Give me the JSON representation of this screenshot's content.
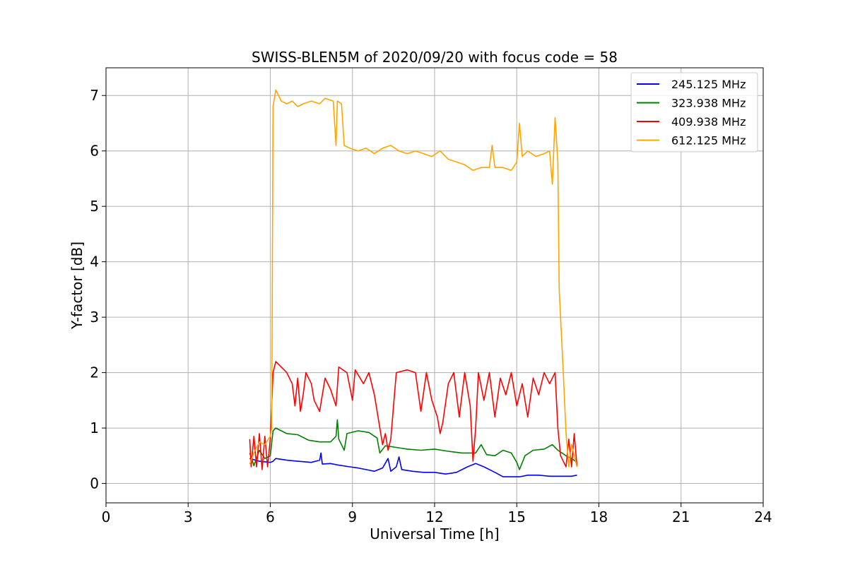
{
  "chart_data": {
    "type": "line",
    "title": "SWISS-BLEN5M of 2020/09/20 with focus code = 58",
    "xlabel": "Universal Time [h]",
    "ylabel": "Y-factor [dB]",
    "xlim": [
      0,
      24
    ],
    "ylim": [
      -0.35,
      7.5
    ],
    "xticks": [
      0,
      3,
      6,
      9,
      12,
      15,
      18,
      21,
      24
    ],
    "yticks": [
      0,
      1,
      2,
      3,
      4,
      5,
      6,
      7
    ],
    "grid": true,
    "legend": "top-right",
    "series": [
      {
        "name": "245.125 MHz",
        "color": "#0000ff",
        "points": [
          [
            5.25,
            0.45
          ],
          [
            5.6,
            0.4
          ],
          [
            6.0,
            0.38
          ],
          [
            6.1,
            0.4
          ],
          [
            6.2,
            0.45
          ],
          [
            6.6,
            0.42
          ],
          [
            7.0,
            0.4
          ],
          [
            7.5,
            0.38
          ],
          [
            7.8,
            0.42
          ],
          [
            7.85,
            0.55
          ],
          [
            7.9,
            0.35
          ],
          [
            8.2,
            0.36
          ],
          [
            8.5,
            0.33
          ],
          [
            8.9,
            0.3
          ],
          [
            9.2,
            0.28
          ],
          [
            9.5,
            0.25
          ],
          [
            9.8,
            0.22
          ],
          [
            10.1,
            0.28
          ],
          [
            10.3,
            0.45
          ],
          [
            10.4,
            0.22
          ],
          [
            10.6,
            0.3
          ],
          [
            10.7,
            0.48
          ],
          [
            10.8,
            0.25
          ],
          [
            11.2,
            0.22
          ],
          [
            11.6,
            0.2
          ],
          [
            12.0,
            0.2
          ],
          [
            12.4,
            0.17
          ],
          [
            12.8,
            0.2
          ],
          [
            13.2,
            0.3
          ],
          [
            13.5,
            0.36
          ],
          [
            13.8,
            0.3
          ],
          [
            14.2,
            0.2
          ],
          [
            14.5,
            0.12
          ],
          [
            14.8,
            0.12
          ],
          [
            15.1,
            0.12
          ],
          [
            15.4,
            0.15
          ],
          [
            15.8,
            0.15
          ],
          [
            16.2,
            0.13
          ],
          [
            16.6,
            0.13
          ],
          [
            17.0,
            0.13
          ],
          [
            17.2,
            0.15
          ]
        ]
      },
      {
        "name": "323.938 MHz",
        "color": "#008000",
        "points": [
          [
            5.25,
            0.55
          ],
          [
            5.4,
            0.32
          ],
          [
            5.6,
            0.6
          ],
          [
            5.8,
            0.45
          ],
          [
            6.0,
            0.5
          ],
          [
            6.1,
            0.95
          ],
          [
            6.2,
            1.0
          ],
          [
            6.6,
            0.9
          ],
          [
            7.0,
            0.88
          ],
          [
            7.4,
            0.78
          ],
          [
            7.8,
            0.75
          ],
          [
            8.2,
            0.75
          ],
          [
            8.4,
            0.85
          ],
          [
            8.45,
            1.15
          ],
          [
            8.5,
            0.8
          ],
          [
            8.7,
            0.6
          ],
          [
            8.8,
            0.9
          ],
          [
            9.2,
            0.95
          ],
          [
            9.6,
            0.92
          ],
          [
            9.9,
            0.82
          ],
          [
            10.0,
            0.55
          ],
          [
            10.2,
            0.68
          ],
          [
            10.6,
            0.65
          ],
          [
            11.0,
            0.62
          ],
          [
            11.5,
            0.6
          ],
          [
            12.0,
            0.62
          ],
          [
            12.5,
            0.58
          ],
          [
            13.0,
            0.55
          ],
          [
            13.5,
            0.55
          ],
          [
            13.7,
            0.7
          ],
          [
            13.9,
            0.52
          ],
          [
            14.2,
            0.5
          ],
          [
            14.5,
            0.6
          ],
          [
            14.8,
            0.55
          ],
          [
            15.0,
            0.38
          ],
          [
            15.1,
            0.25
          ],
          [
            15.3,
            0.5
          ],
          [
            15.6,
            0.6
          ],
          [
            16.0,
            0.62
          ],
          [
            16.3,
            0.7
          ],
          [
            16.5,
            0.6
          ],
          [
            16.8,
            0.5
          ],
          [
            17.0,
            0.45
          ],
          [
            17.2,
            0.38
          ]
        ]
      },
      {
        "name": "409.938 MHz",
        "color": "#ff0000",
        "points": [
          [
            5.25,
            0.8
          ],
          [
            5.3,
            0.3
          ],
          [
            5.4,
            0.85
          ],
          [
            5.5,
            0.3
          ],
          [
            5.6,
            0.9
          ],
          [
            5.7,
            0.25
          ],
          [
            5.8,
            0.85
          ],
          [
            5.9,
            0.3
          ],
          [
            6.0,
            0.8
          ],
          [
            6.1,
            2.0
          ],
          [
            6.2,
            2.2
          ],
          [
            6.4,
            2.1
          ],
          [
            6.6,
            2.0
          ],
          [
            6.8,
            1.8
          ],
          [
            6.9,
            1.4
          ],
          [
            7.0,
            1.9
          ],
          [
            7.1,
            1.3
          ],
          [
            7.2,
            1.6
          ],
          [
            7.3,
            2.0
          ],
          [
            7.5,
            1.8
          ],
          [
            7.6,
            1.5
          ],
          [
            7.8,
            1.3
          ],
          [
            8.0,
            1.9
          ],
          [
            8.2,
            1.7
          ],
          [
            8.4,
            1.4
          ],
          [
            8.5,
            2.1
          ],
          [
            8.8,
            2.0
          ],
          [
            9.0,
            1.5
          ],
          [
            9.1,
            2.05
          ],
          [
            9.4,
            1.8
          ],
          [
            9.6,
            2.0
          ],
          [
            9.8,
            1.6
          ],
          [
            10.0,
            1.0
          ],
          [
            10.1,
            0.7
          ],
          [
            10.2,
            0.9
          ],
          [
            10.3,
            0.6
          ],
          [
            10.4,
            0.8
          ],
          [
            10.6,
            2.0
          ],
          [
            11.0,
            2.05
          ],
          [
            11.3,
            2.0
          ],
          [
            11.5,
            1.3
          ],
          [
            11.7,
            2.0
          ],
          [
            11.9,
            1.5
          ],
          [
            12.1,
            1.2
          ],
          [
            12.2,
            0.9
          ],
          [
            12.3,
            1.1
          ],
          [
            12.5,
            1.8
          ],
          [
            12.7,
            2.0
          ],
          [
            12.9,
            1.2
          ],
          [
            13.1,
            2.0
          ],
          [
            13.3,
            1.4
          ],
          [
            13.4,
            0.4
          ],
          [
            13.5,
            1.0
          ],
          [
            13.6,
            2.0
          ],
          [
            13.8,
            1.5
          ],
          [
            14.0,
            2.0
          ],
          [
            14.2,
            1.2
          ],
          [
            14.4,
            1.9
          ],
          [
            14.6,
            1.6
          ],
          [
            14.8,
            2.0
          ],
          [
            15.0,
            1.4
          ],
          [
            15.2,
            1.8
          ],
          [
            15.4,
            1.2
          ],
          [
            15.6,
            1.9
          ],
          [
            15.8,
            1.6
          ],
          [
            16.0,
            2.0
          ],
          [
            16.2,
            1.8
          ],
          [
            16.4,
            2.0
          ],
          [
            16.5,
            1.0
          ],
          [
            16.6,
            0.5
          ],
          [
            16.8,
            0.3
          ],
          [
            16.9,
            0.8
          ],
          [
            17.0,
            0.3
          ],
          [
            17.1,
            0.9
          ],
          [
            17.2,
            0.3
          ]
        ]
      },
      {
        "name": "612.125 MHz",
        "color": "#ffa500",
        "points": [
          [
            5.25,
            0.35
          ],
          [
            5.4,
            0.55
          ],
          [
            5.6,
            0.75
          ],
          [
            5.8,
            0.7
          ],
          [
            6.0,
            0.85
          ],
          [
            6.05,
            1.0
          ],
          [
            6.1,
            6.8
          ],
          [
            6.2,
            7.1
          ],
          [
            6.4,
            6.9
          ],
          [
            6.6,
            6.85
          ],
          [
            6.8,
            6.9
          ],
          [
            7.0,
            6.8
          ],
          [
            7.2,
            6.85
          ],
          [
            7.5,
            6.9
          ],
          [
            7.8,
            6.85
          ],
          [
            8.0,
            6.95
          ],
          [
            8.3,
            6.9
          ],
          [
            8.4,
            6.1
          ],
          [
            8.45,
            6.9
          ],
          [
            8.6,
            6.85
          ],
          [
            8.7,
            6.1
          ],
          [
            8.9,
            6.05
          ],
          [
            9.2,
            6.0
          ],
          [
            9.5,
            6.05
          ],
          [
            9.8,
            5.95
          ],
          [
            10.1,
            6.05
          ],
          [
            10.4,
            6.1
          ],
          [
            10.7,
            6.0
          ],
          [
            11.0,
            5.95
          ],
          [
            11.3,
            6.0
          ],
          [
            11.6,
            5.95
          ],
          [
            11.9,
            5.9
          ],
          [
            12.2,
            6.0
          ],
          [
            12.5,
            5.85
          ],
          [
            12.8,
            5.8
          ],
          [
            13.1,
            5.75
          ],
          [
            13.4,
            5.65
          ],
          [
            13.7,
            5.7
          ],
          [
            14.0,
            5.7
          ],
          [
            14.1,
            6.1
          ],
          [
            14.2,
            5.7
          ],
          [
            14.5,
            5.7
          ],
          [
            14.8,
            5.65
          ],
          [
            15.0,
            5.8
          ],
          [
            15.1,
            6.5
          ],
          [
            15.2,
            5.9
          ],
          [
            15.4,
            6.0
          ],
          [
            15.7,
            5.9
          ],
          [
            16.0,
            5.95
          ],
          [
            16.2,
            6.0
          ],
          [
            16.3,
            5.4
          ],
          [
            16.4,
            6.6
          ],
          [
            16.5,
            5.8
          ],
          [
            16.55,
            3.5
          ],
          [
            16.7,
            2.0
          ],
          [
            16.8,
            0.9
          ],
          [
            16.9,
            0.3
          ],
          [
            17.0,
            0.7
          ],
          [
            17.1,
            0.5
          ],
          [
            17.2,
            0.3
          ]
        ]
      }
    ]
  }
}
